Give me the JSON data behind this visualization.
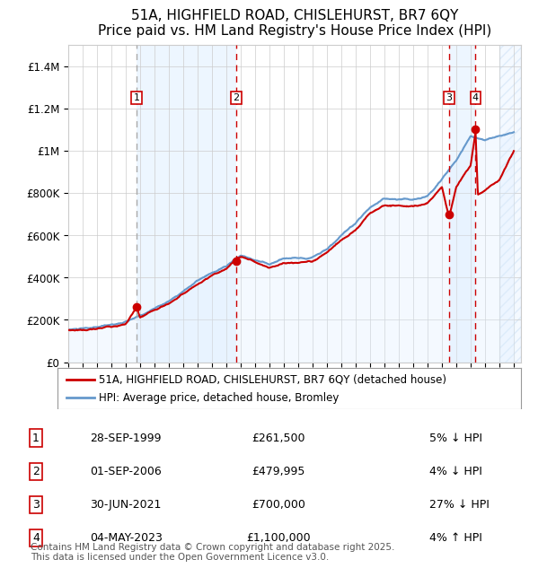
{
  "title": "51A, HIGHFIELD ROAD, CHISLEHURST, BR7 6QY",
  "subtitle": "Price paid vs. HM Land Registry's House Price Index (HPI)",
  "xlabel": "",
  "ylabel": "",
  "ylim": [
    0,
    1500000
  ],
  "yticks": [
    0,
    200000,
    400000,
    600000,
    800000,
    1000000,
    1200000,
    1400000
  ],
  "ytick_labels": [
    "£0",
    "£200K",
    "£400K",
    "£600K",
    "£800K",
    "£1M",
    "£1.2M",
    "£1.4M"
  ],
  "year_start": 1995,
  "year_end": 2026,
  "sale_color": "#cc0000",
  "hpi_color": "#6699cc",
  "hpi_fill_color": "#ddeeff",
  "sale_marker_color": "#cc0000",
  "grid_color": "#cccccc",
  "background_color": "#ffffff",
  "shaded_regions_color": "#ddeeff",
  "transactions": [
    {
      "label": "1",
      "date_num": 1999.75,
      "price": 261500,
      "x_label_offset": 0
    },
    {
      "label": "2",
      "date_num": 2006.67,
      "price": 479995,
      "x_label_offset": 0
    },
    {
      "label": "3",
      "date_num": 2021.5,
      "price": 700000,
      "x_label_offset": 0
    },
    {
      "label": "4",
      "date_num": 2023.34,
      "price": 1100000,
      "x_label_offset": 0
    }
  ],
  "table_rows": [
    {
      "num": "1",
      "date": "28-SEP-1999",
      "price": "£261,500",
      "hpi_note": "5% ↓ HPI"
    },
    {
      "num": "2",
      "date": "01-SEP-2006",
      "price": "£479,995",
      "hpi_note": "4% ↓ HPI"
    },
    {
      "num": "3",
      "date": "30-JUN-2021",
      "price": "£700,000",
      "hpi_note": "27% ↓ HPI"
    },
    {
      "num": "4",
      "date": "04-MAY-2023",
      "price": "£1,100,000",
      "hpi_note": "4% ↑ HPI"
    }
  ],
  "legend_entries": [
    {
      "label": "51A, HIGHFIELD ROAD, CHISLEHURST, BR7 6QY (detached house)",
      "color": "#cc0000"
    },
    {
      "label": "HPI: Average price, detached house, Bromley",
      "color": "#6699cc"
    }
  ],
  "footnote": "Contains HM Land Registry data © Crown copyright and database right 2025.\nThis data is licensed under the Open Government Licence v3.0.",
  "title_fontsize": 11,
  "subtitle_fontsize": 10,
  "tick_fontsize": 8.5,
  "legend_fontsize": 8.5,
  "table_fontsize": 9,
  "footnote_fontsize": 7.5
}
